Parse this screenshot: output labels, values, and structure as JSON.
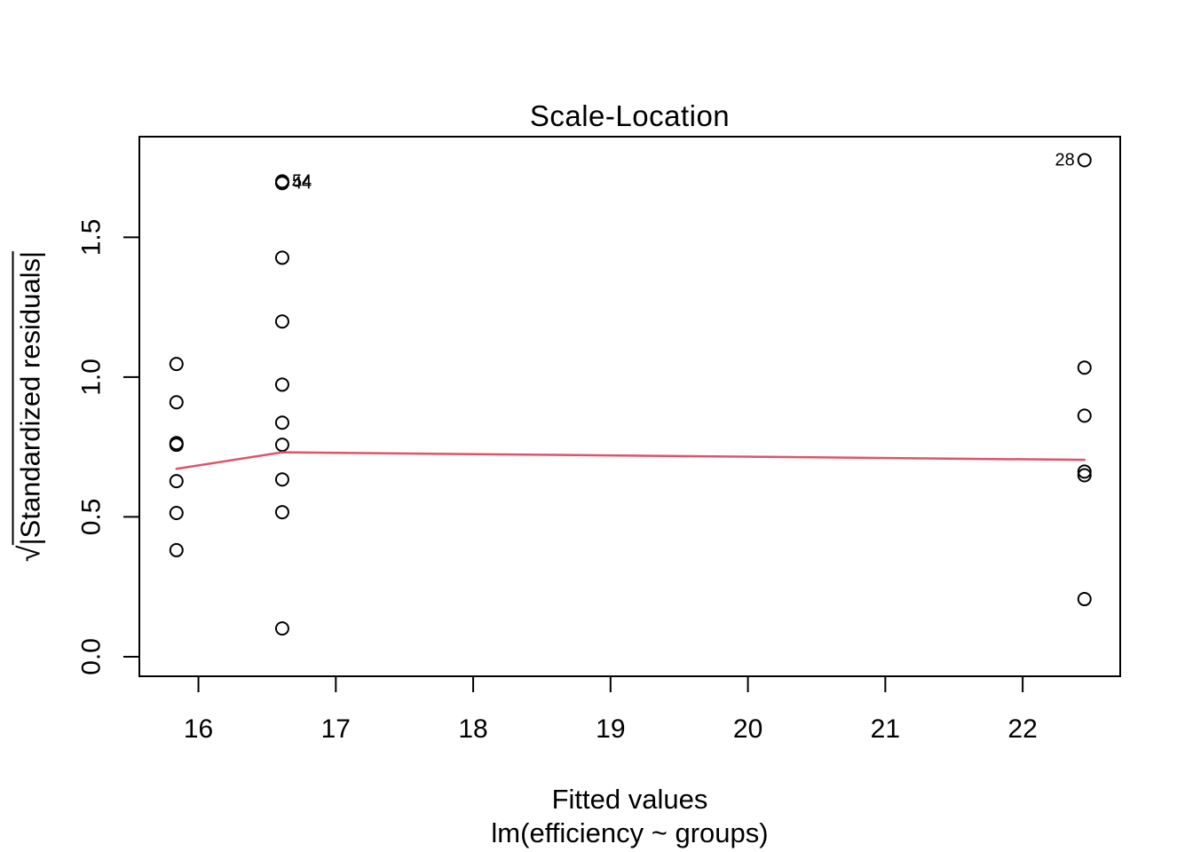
{
  "title": "Scale-Location",
  "x_axis": {
    "label": "Fitted values",
    "sublabel": "lm(efficiency ~ groups)"
  },
  "y_axis": {
    "sqrt_sign": "√",
    "radicand": "|Standardized residuals|"
  },
  "chart_data": {
    "type": "scatter",
    "title": "Scale-Location",
    "xlabel": "Fitted values",
    "xlabel_line2": "lm(efficiency ~ groups)",
    "ylabel": "sqrt(|Standardized residuals|)",
    "xlim": [
      15.57,
      22.71
    ],
    "ylim": [
      -0.07,
      1.86
    ],
    "grid": false,
    "legend": "none",
    "x_ticks": [
      {
        "v": 16,
        "label": "16"
      },
      {
        "v": 17,
        "label": "17"
      },
      {
        "v": 18,
        "label": "18"
      },
      {
        "v": 19,
        "label": "19"
      },
      {
        "v": 20,
        "label": "20"
      },
      {
        "v": 21,
        "label": "21"
      },
      {
        "v": 22,
        "label": "22"
      }
    ],
    "y_ticks": [
      {
        "v": 0.0,
        "label": "0.0"
      },
      {
        "v": 0.5,
        "label": "0.5"
      },
      {
        "v": 1.0,
        "label": "1.0"
      },
      {
        "v": 1.5,
        "label": "1.5"
      }
    ],
    "point_color": "#000000",
    "smooth_color": "#DF536B",
    "points": [
      {
        "x": 15.84,
        "y": 1.047
      },
      {
        "x": 15.84,
        "y": 0.91
      },
      {
        "x": 15.84,
        "y": 0.764
      },
      {
        "x": 15.84,
        "y": 0.758
      },
      {
        "x": 15.84,
        "y": 0.628
      },
      {
        "x": 15.84,
        "y": 0.514
      },
      {
        "x": 15.84,
        "y": 0.381
      },
      {
        "x": 16.61,
        "y": 1.7,
        "label": "54",
        "label_side": "right"
      },
      {
        "x": 16.61,
        "y": 1.694,
        "label": "44",
        "label_side": "right"
      },
      {
        "x": 16.61,
        "y": 1.427
      },
      {
        "x": 16.61,
        "y": 1.199
      },
      {
        "x": 16.61,
        "y": 0.973
      },
      {
        "x": 16.61,
        "y": 0.837
      },
      {
        "x": 16.61,
        "y": 0.758
      },
      {
        "x": 16.61,
        "y": 0.634
      },
      {
        "x": 16.61,
        "y": 0.517
      },
      {
        "x": 16.61,
        "y": 0.101
      },
      {
        "x": 22.45,
        "y": 1.776,
        "label": "28",
        "label_side": "left"
      },
      {
        "x": 22.45,
        "y": 1.034
      },
      {
        "x": 22.45,
        "y": 0.862
      },
      {
        "x": 22.45,
        "y": 0.662
      },
      {
        "x": 22.45,
        "y": 0.649
      },
      {
        "x": 22.45,
        "y": 0.206
      }
    ],
    "smooth_line": [
      {
        "x": 15.84,
        "y": 0.672
      },
      {
        "x": 16.61,
        "y": 0.731
      },
      {
        "x": 22.45,
        "y": 0.704
      }
    ]
  }
}
